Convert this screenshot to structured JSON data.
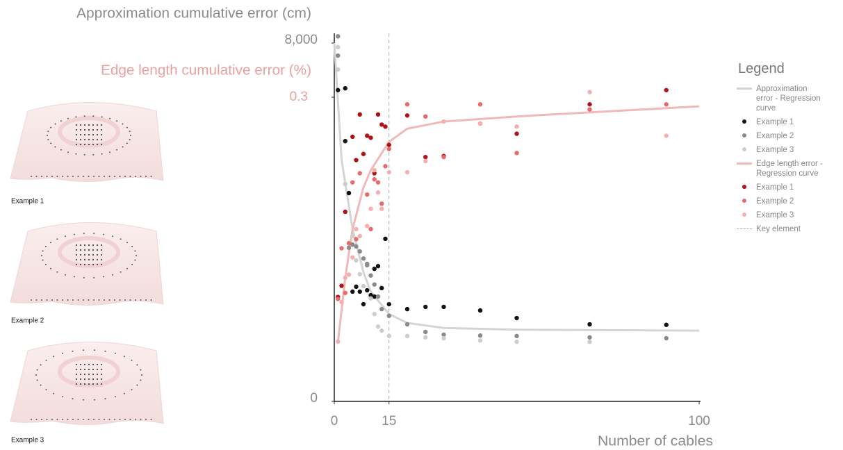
{
  "panels": [
    {
      "label": "Example 1"
    },
    {
      "label": "Example 2"
    },
    {
      "label": "Example 3"
    }
  ],
  "chart_data": {
    "type": "scatter",
    "y_label": "Approximation cumulative error (cm)",
    "y2_label": "Edge length cumulative error (%)",
    "x_label": "Number of cables",
    "legend_title": "Legend",
    "xlim": [
      0,
      100
    ],
    "xticks": [
      0,
      15,
      100
    ],
    "ylim": [
      0,
      8000
    ],
    "yticks": [
      0,
      {
        "value": 8000,
        "label": "8,000"
      }
    ],
    "y2lim": [
      0,
      0.3
    ],
    "y2ticks": [
      0.3
    ],
    "key_line": {
      "x": 15,
      "label": "Key element"
    },
    "series": [
      {
        "name": "Approximation error - Regression curve",
        "type": "line",
        "color": "#d4d4d4",
        "x": [
          0,
          2,
          5,
          8,
          10,
          15,
          20,
          30,
          50,
          100
        ],
        "values": [
          8000,
          5390,
          3850,
          2880,
          2450,
          1950,
          1750,
          1640,
          1600,
          1580
        ]
      },
      {
        "name": "Example 1",
        "type": "scatter",
        "color": "#111111",
        "x": [
          1,
          3,
          3,
          4,
          5,
          6,
          7,
          8,
          9,
          10,
          11,
          11,
          12,
          13,
          14,
          15,
          20,
          25,
          30,
          40,
          50,
          70,
          91
        ],
        "values": [
          6950,
          6990,
          5810,
          4650,
          2450,
          2560,
          2450,
          2170,
          2480,
          2370,
          2340,
          2960,
          3020,
          2530,
          3630,
          2170,
          2060,
          2110,
          2110,
          2030,
          1860,
          1720,
          1710
        ]
      },
      {
        "name": "Example 2",
        "type": "scatter",
        "color": "#8a8a8a",
        "x": [
          1,
          1,
          4,
          5,
          6,
          7,
          8,
          9,
          9,
          10,
          11,
          12,
          13,
          15,
          20,
          25,
          30,
          40,
          50,
          70,
          91
        ],
        "values": [
          8150,
          7720,
          3430,
          3500,
          3460,
          3350,
          3190,
          3070,
          3040,
          2810,
          2610,
          2340,
          2060,
          1910,
          1720,
          1550,
          1490,
          1470,
          1460,
          1430,
          1410
        ]
      },
      {
        "name": "Example 3",
        "type": "scatter",
        "color": "#cdcdcd",
        "x": [
          1,
          1,
          3,
          5,
          6,
          7,
          8,
          10,
          11,
          12,
          13,
          15,
          20,
          25,
          30,
          40,
          50,
          70
        ],
        "values": [
          7910,
          7410,
          4850,
          3690,
          3150,
          2840,
          2570,
          2300,
          1950,
          1670,
          1580,
          1460,
          1460,
          1430,
          1410,
          1360,
          1330,
          1330
        ]
      },
      {
        "name": "Edge length error - Regression curve",
        "type": "line",
        "axis": "y2",
        "color": "#f2b8b8",
        "x": [
          1,
          3,
          5,
          8,
          10,
          15,
          20,
          30,
          50,
          100
        ],
        "values": [
          0.059,
          0.122,
          0.17,
          0.211,
          0.228,
          0.256,
          0.269,
          0.276,
          0.281,
          0.291
        ]
      },
      {
        "name": "Example 1",
        "type": "scatter",
        "axis": "y2",
        "color": "#b01218",
        "x": [
          1,
          2,
          3,
          5,
          6,
          7,
          8,
          9,
          10,
          11,
          12,
          13,
          14,
          15,
          20,
          25,
          30,
          40,
          50,
          70,
          91
        ],
        "values": [
          0.103,
          0.114,
          0.187,
          0.261,
          0.238,
          0.283,
          0.244,
          0.262,
          0.26,
          0.225,
          0.283,
          0.273,
          0.271,
          0.253,
          0.282,
          0.241,
          0.242,
          0.274,
          0.264,
          0.293,
          0.307
        ]
      },
      {
        "name": "Example 2",
        "type": "scatter",
        "axis": "y2",
        "color": "#e86a6a",
        "x": [
          1,
          2,
          3,
          4,
          5,
          6,
          7,
          9,
          10,
          11,
          12,
          13,
          14,
          15,
          20,
          25,
          30,
          40,
          50,
          70,
          91
        ],
        "values": [
          0.101,
          0.151,
          0.107,
          0.156,
          0.216,
          0.16,
          0.225,
          0.204,
          0.17,
          0.219,
          0.216,
          0.195,
          0.232,
          0.249,
          0.293,
          0.281,
          0.241,
          0.293,
          0.245,
          0.288,
          0.293
        ]
      },
      {
        "name": "Example 3",
        "type": "scatter",
        "axis": "y2",
        "color": "#f4b0b0",
        "x": [
          1,
          2,
          3,
          4,
          5,
          6,
          7,
          9,
          10,
          11,
          12,
          13,
          15,
          20,
          25,
          30,
          40,
          50,
          70,
          91
        ],
        "values": [
          0.059,
          0.098,
          0.122,
          0.125,
          0.142,
          0.17,
          0.163,
          0.173,
          0.19,
          0.228,
          0.206,
          0.19,
          0.226,
          0.226,
          0.237,
          0.276,
          0.274,
          0.271,
          0.305,
          0.262
        ]
      }
    ]
  }
}
